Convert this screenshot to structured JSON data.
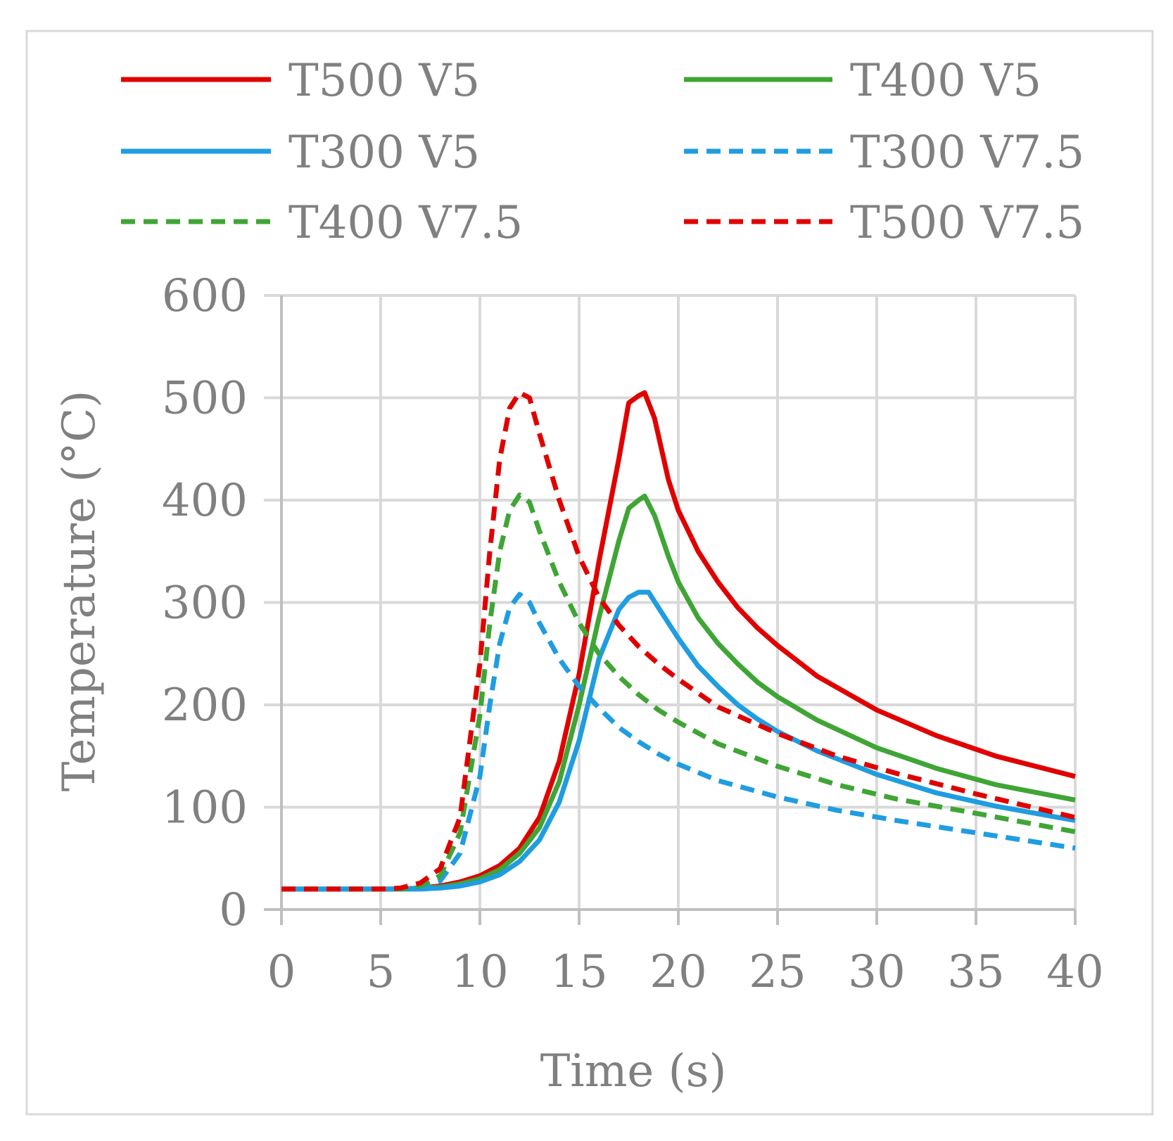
{
  "chart_data": {
    "type": "line",
    "title": "",
    "xlabel": "Time (s)",
    "ylabel": "Temperature (°C)",
    "xlim": [
      0,
      40
    ],
    "ylim": [
      0,
      600
    ],
    "xticks": [
      0,
      5,
      10,
      15,
      20,
      25,
      30,
      35,
      40
    ],
    "yticks": [
      0,
      100,
      200,
      300,
      400,
      500,
      600
    ],
    "xtick_labels": [
      "0",
      "5",
      "10",
      "15",
      "20",
      "25",
      "30",
      "35",
      "40"
    ],
    "ytick_labels": [
      "0",
      "100",
      "200",
      "300",
      "400",
      "500",
      "600"
    ],
    "grid": true,
    "legend_position": "top",
    "series": [
      {
        "name": "T500 V5",
        "color": "#e00000",
        "dash": "solid",
        "x": [
          0,
          5,
          6,
          7,
          8,
          9,
          10,
          11,
          12,
          13,
          14,
          15,
          16,
          17,
          17.5,
          18,
          18.3,
          18.8,
          19.5,
          20,
          21,
          22,
          23,
          24,
          25,
          27,
          30,
          33,
          36,
          40
        ],
        "y": [
          20,
          20,
          20,
          21,
          23,
          27,
          33,
          43,
          60,
          90,
          145,
          230,
          340,
          440,
          495,
          502,
          505,
          480,
          420,
          390,
          350,
          320,
          295,
          275,
          258,
          228,
          195,
          170,
          150,
          130
        ]
      },
      {
        "name": "T400 V5",
        "color": "#3fa535",
        "dash": "solid",
        "x": [
          0,
          5,
          6,
          7,
          8,
          9,
          10,
          11,
          12,
          13,
          14,
          15,
          16,
          17,
          17.5,
          18,
          18.3,
          18.8,
          19.5,
          20,
          21,
          22,
          23,
          24,
          25,
          27,
          30,
          33,
          36,
          40
        ],
        "y": [
          20,
          20,
          20,
          21,
          22,
          25,
          30,
          39,
          55,
          80,
          125,
          200,
          285,
          360,
          392,
          400,
          404,
          385,
          345,
          320,
          285,
          260,
          240,
          222,
          208,
          185,
          158,
          138,
          122,
          107
        ]
      },
      {
        "name": "T300 V5",
        "color": "#1f9de0",
        "dash": "solid",
        "x": [
          0,
          5,
          6,
          7,
          8,
          9,
          10,
          11,
          12,
          13,
          14,
          15,
          16,
          17,
          17.5,
          18,
          18.5,
          19,
          20,
          21,
          22,
          23,
          24,
          25,
          27,
          30,
          33,
          36,
          40
        ],
        "y": [
          20,
          20,
          20,
          20,
          21,
          23,
          27,
          34,
          47,
          68,
          105,
          165,
          245,
          293,
          305,
          310,
          310,
          295,
          265,
          238,
          218,
          200,
          186,
          174,
          155,
          132,
          114,
          101,
          87
        ]
      },
      {
        "name": "T300 V7.5",
        "color": "#1f9de0",
        "dash": "dashed",
        "x": [
          0,
          5,
          6,
          7,
          8,
          9,
          10,
          10.5,
          11,
          11.5,
          12,
          12.5,
          13,
          14,
          15,
          16,
          17,
          18,
          19,
          20,
          22,
          25,
          28,
          31,
          35,
          40
        ],
        "y": [
          20,
          20,
          20,
          22,
          28,
          55,
          130,
          200,
          260,
          295,
          308,
          300,
          280,
          245,
          218,
          197,
          178,
          164,
          152,
          142,
          126,
          110,
          97,
          87,
          75,
          60
        ]
      },
      {
        "name": "T400 V7.5",
        "color": "#3fa535",
        "dash": "dashed",
        "x": [
          0,
          5,
          6,
          7,
          8,
          9,
          10,
          10.5,
          11,
          11.5,
          12,
          12.5,
          13,
          14,
          15,
          16,
          17,
          18,
          19,
          20,
          22,
          25,
          28,
          31,
          35,
          40
        ],
        "y": [
          20,
          20,
          20,
          23,
          33,
          75,
          190,
          280,
          350,
          390,
          405,
          398,
          370,
          320,
          280,
          250,
          228,
          210,
          195,
          183,
          162,
          140,
          122,
          108,
          94,
          76
        ]
      },
      {
        "name": "T500 V7.5",
        "color": "#e00000",
        "dash": "dashed",
        "x": [
          0,
          5,
          6,
          7,
          8,
          9,
          10,
          10.5,
          11,
          11.5,
          12,
          12.5,
          13,
          14,
          15,
          16,
          17,
          18,
          19,
          20,
          22,
          25,
          28,
          31,
          35,
          40
        ],
        "y": [
          20,
          20,
          21,
          26,
          40,
          90,
          240,
          350,
          440,
          490,
          505,
          500,
          465,
          400,
          345,
          305,
          278,
          257,
          240,
          225,
          198,
          172,
          150,
          133,
          113,
          90
        ]
      }
    ]
  }
}
